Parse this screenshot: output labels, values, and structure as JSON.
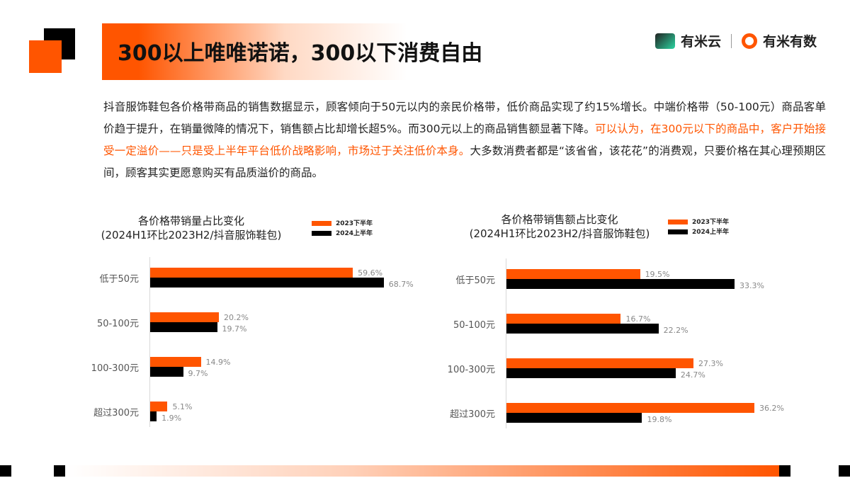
{
  "title": "300以上唯唯诺诺，300以下消费自由",
  "logos": {
    "yun": "有米云",
    "shu": "有米有数"
  },
  "paragraph": {
    "normal1": "抖音服饰鞋包各价格带商品的销售数据显示，顾客倾向于50元以内的亲民价格带，低价商品实现了约15%增长。中端价格带（50-100元）商品客单价趋于提升，在销量微降的情况下，销售额占比却增长超5%。而300元以上的商品销售额显著下降。",
    "highlight": "可以认为，在300元以下的商品中，客户开始接受一定溢价——只是受上半年平台低价战略影响，市场过于关注低价本身。",
    "normal2": "大多数消费者都是“该省省，该花花”的消费观，只要价格在其心理预期区间，顾客其实更愿意购买有品质溢价的商品。"
  },
  "chart_data": [
    {
      "type": "bar",
      "title": "各价格带销量占比变化",
      "subtitle": "(2024H1环比2023H2/抖音服饰鞋包)",
      "categories": [
        "低于50元",
        "50-100元",
        "100-300元",
        "超过300元"
      ],
      "series": [
        {
          "name": "2023下半年",
          "color": "#ff5500",
          "values": [
            59.6,
            20.2,
            14.9,
            5.1
          ],
          "labels": [
            "59.6%",
            "20.2%",
            "14.9%",
            "5.1%"
          ]
        },
        {
          "name": "2024上半年",
          "color": "#000000",
          "values": [
            68.7,
            19.7,
            9.7,
            1.9
          ],
          "labels": [
            "68.7%",
            "19.7%",
            "9.7%",
            "1.9%"
          ]
        }
      ],
      "xlim": [
        0,
        70
      ]
    },
    {
      "type": "bar",
      "title": "各价格带销售额占比变化",
      "subtitle": "(2024H1环比2023H2/抖音服饰鞋包)",
      "categories": [
        "低于50元",
        "50-100元",
        "100-300元",
        "超过300元"
      ],
      "series": [
        {
          "name": "2023下半年",
          "color": "#ff5500",
          "values": [
            19.5,
            16.7,
            27.3,
            36.2
          ],
          "labels": [
            "19.5%",
            "16.7%",
            "27.3%",
            "36.2%"
          ]
        },
        {
          "name": "2024上半年",
          "color": "#000000",
          "values": [
            33.3,
            22.2,
            24.7,
            19.8
          ],
          "labels": [
            "33.3%",
            "22.2%",
            "24.7%",
            "19.8%"
          ]
        }
      ],
      "xlim": [
        0,
        37
      ]
    }
  ]
}
